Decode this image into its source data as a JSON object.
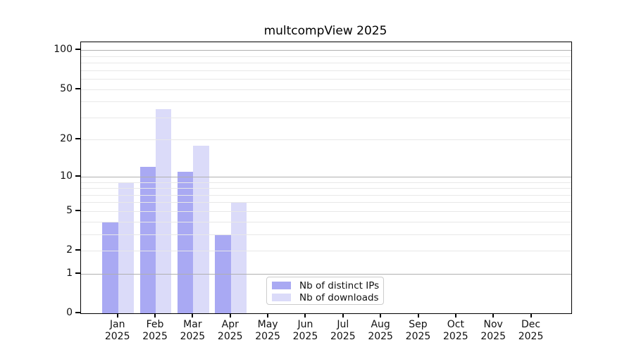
{
  "title": "multcompView 2025",
  "chart_data": {
    "type": "bar",
    "title": "multcompView 2025",
    "xlabel": "",
    "ylabel": "",
    "year": "2025",
    "categories": [
      "Jan",
      "Feb",
      "Mar",
      "Apr",
      "May",
      "Jun",
      "Jul",
      "Aug",
      "Sep",
      "Oct",
      "Nov",
      "Dec"
    ],
    "series": [
      {
        "name": "Nb of distinct IPs",
        "color": "#a9a9f3",
        "values": [
          4,
          12,
          11,
          3,
          0,
          0,
          0,
          0,
          0,
          0,
          0,
          0
        ]
      },
      {
        "name": "Nb of downloads",
        "color": "#dbdbf9",
        "values": [
          9,
          35,
          18,
          6,
          0,
          0,
          0,
          0,
          0,
          0,
          0,
          0
        ]
      }
    ],
    "yticks": [
      0,
      1,
      2,
      5,
      10,
      20,
      50,
      100
    ],
    "major_grid_values": [
      1,
      10,
      100
    ],
    "minor_grid_values": [
      2,
      3,
      4,
      5,
      6,
      7,
      8,
      9,
      20,
      30,
      40,
      50,
      60,
      70,
      80,
      90
    ],
    "scale": "log10(1+x)",
    "ylim": [
      0,
      115
    ],
    "grid": "on",
    "legend_position": "inside-bottom-center"
  },
  "colors": {
    "bar_distinct_ips": "#a9a9f3",
    "bar_downloads": "#dbdbf9",
    "major_grid": "#b0b0b0",
    "minor_grid": "#e8e8e8",
    "axis": "#000000",
    "legend_border": "#cccccc",
    "text": "#111111"
  }
}
